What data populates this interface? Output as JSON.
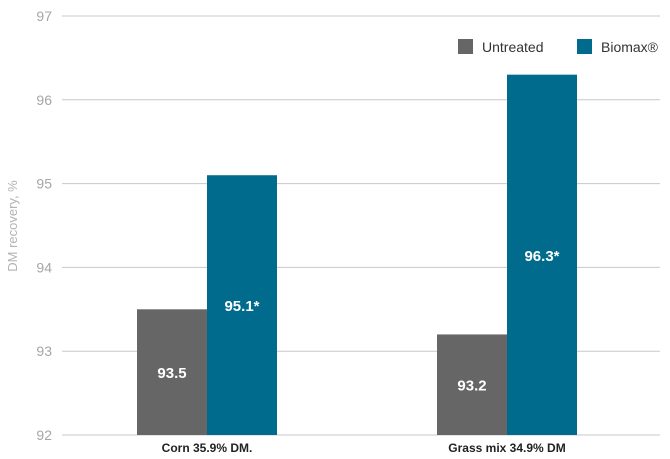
{
  "chart_data": {
    "type": "bar",
    "ylabel": "DM recovery, %",
    "ylim": [
      92,
      97
    ],
    "yticks": [
      "92",
      "93",
      "94",
      "95",
      "96",
      "97"
    ],
    "grid": true,
    "legend_position": "top-right",
    "categories": [
      "Corn 35.9% DM.",
      "Grass mix 34.9% DM"
    ],
    "series": [
      {
        "name": "Untreated",
        "color": "#666666",
        "values": [
          93.5,
          93.2
        ],
        "labels": [
          "93.5",
          "93.2"
        ]
      },
      {
        "name": "Biomax®",
        "color": "#006b8c",
        "values": [
          95.1,
          96.3
        ],
        "labels": [
          "95.1*",
          "96.3*"
        ]
      }
    ]
  }
}
